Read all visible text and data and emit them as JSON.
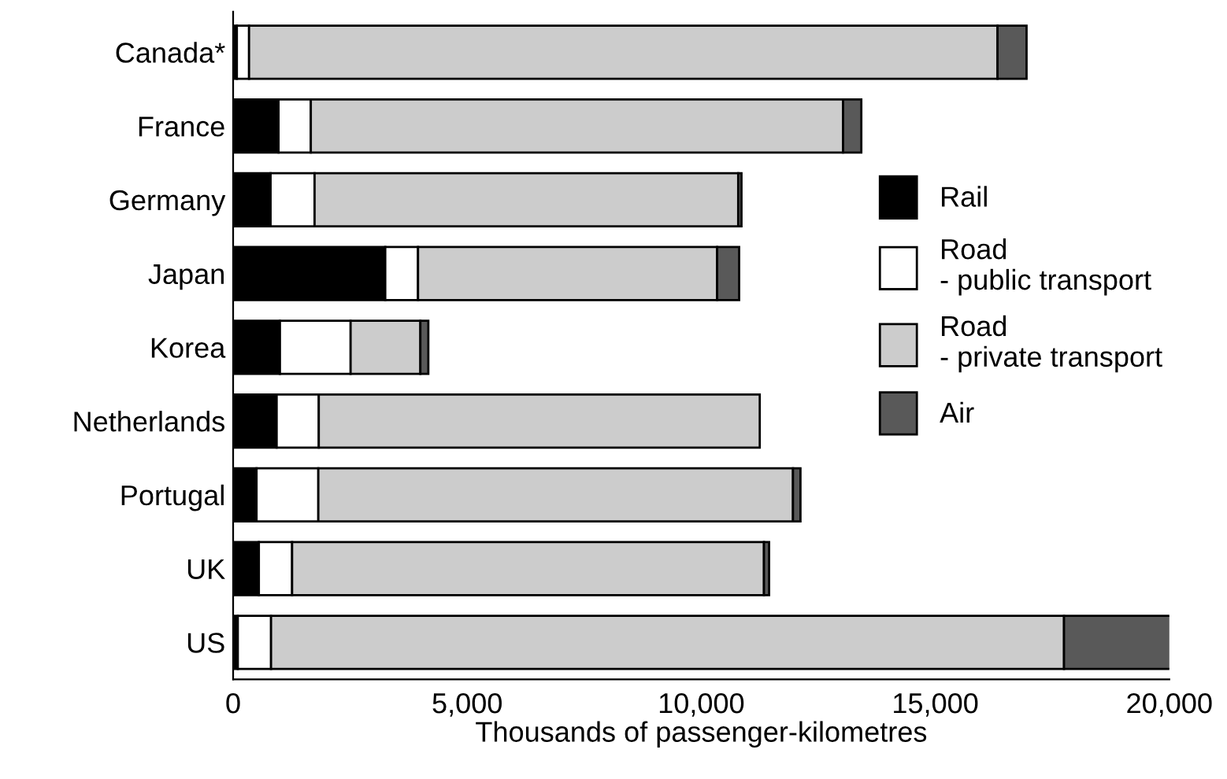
{
  "chart_data": {
    "type": "bar",
    "orientation": "horizontal",
    "stacked": true,
    "categories": [
      "Canada*",
      "France",
      "Germany",
      "Japan",
      "Korea",
      "Netherlands",
      "Portugal",
      "UK",
      "US"
    ],
    "series": [
      {
        "name": "Rail",
        "color": "#000000",
        "values": [
          80,
          970,
          800,
          3250,
          1000,
          930,
          500,
          550,
          100
        ]
      },
      {
        "name": "Road\n- public transport",
        "color": "#ffffff",
        "values": [
          260,
          690,
          940,
          700,
          1510,
          900,
          1320,
          710,
          710
        ]
      },
      {
        "name": "Road\n- private transport",
        "color": "#cccccc",
        "values": [
          15990,
          11370,
          9050,
          6390,
          1490,
          9420,
          10140,
          10080,
          16940
        ]
      },
      {
        "name": "Air",
        "color": "#595959",
        "values": [
          620,
          390,
          70,
          470,
          170,
          null,
          160,
          110,
          2300
        ]
      }
    ],
    "xlabel": "Thousands of passenger-kilometres",
    "xlim": [
      0,
      20000
    ],
    "xticks": [
      {
        "value": 0,
        "label": "0"
      },
      {
        "value": 5000,
        "label": "5,000"
      },
      {
        "value": 10000,
        "label": "10,000"
      },
      {
        "value": 15000,
        "label": "15,000"
      },
      {
        "value": 20000,
        "label": "20,000"
      }
    ],
    "legend": "right"
  }
}
